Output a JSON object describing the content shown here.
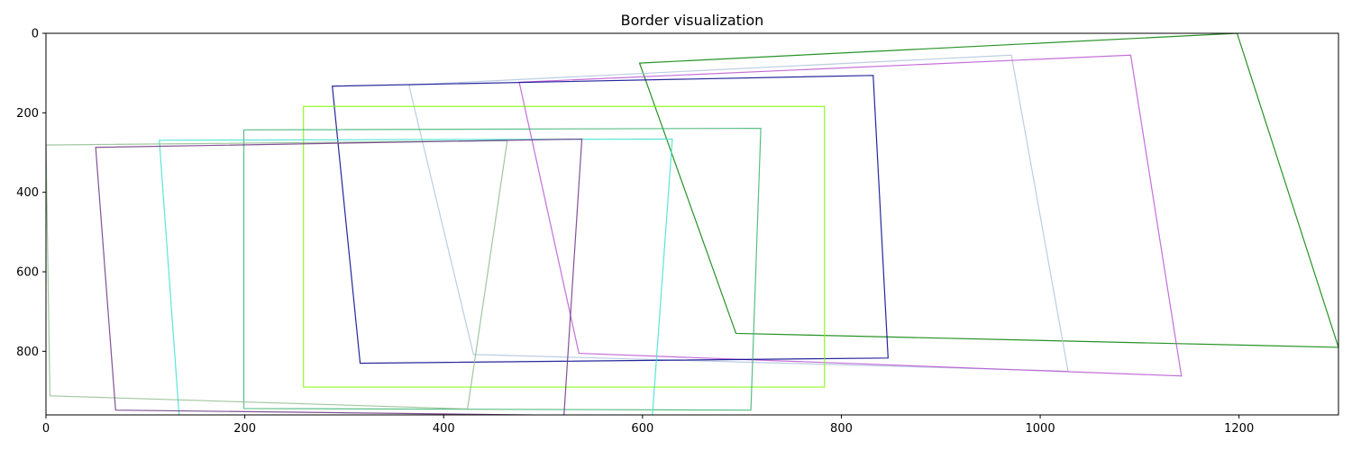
{
  "chart_data": {
    "type": "polygon-outlines",
    "title": "Border visualization",
    "xlabel": "",
    "ylabel": "",
    "xlim": [
      0,
      1300
    ],
    "ylim": [
      960,
      0
    ],
    "y_inverted": true,
    "grid": false,
    "x_ticks": [
      0,
      200,
      400,
      600,
      800,
      1000,
      1200
    ],
    "y_ticks": [
      0,
      200,
      400,
      600,
      800
    ],
    "series": [
      {
        "color": "#008000",
        "points": [
          [
            597,
            75
          ],
          [
            1198,
            0
          ],
          [
            1300,
            790
          ],
          [
            694,
            755
          ]
        ]
      },
      {
        "color": "#b0c4de",
        "points": [
          [
            365,
            130
          ],
          [
            971,
            55
          ],
          [
            1028,
            850
          ],
          [
            430,
            808
          ]
        ]
      },
      {
        "color": "#ba55d3",
        "points": [
          [
            476,
            123
          ],
          [
            1091,
            55
          ],
          [
            1142,
            862
          ],
          [
            536,
            805
          ]
        ]
      },
      {
        "color": "#00008b",
        "points": [
          [
            288,
            133
          ],
          [
            832,
            106
          ],
          [
            847,
            817
          ],
          [
            316,
            830
          ]
        ]
      },
      {
        "color": "#7cfc00",
        "points": [
          [
            259,
            184
          ],
          [
            783,
            184
          ],
          [
            783,
            890
          ],
          [
            259,
            890
          ]
        ]
      },
      {
        "color": "#3cb371",
        "points": [
          [
            199,
            243
          ],
          [
            719,
            239
          ],
          [
            709,
            948
          ],
          [
            199,
            944
          ]
        ]
      },
      {
        "color": "#40e0d0",
        "points": [
          [
            114,
            269
          ],
          [
            630,
            266
          ],
          [
            610,
            960
          ],
          [
            134,
            963
          ]
        ]
      },
      {
        "color": "#8fbc8f",
        "points": [
          [
            0,
            281
          ],
          [
            464,
            270
          ],
          [
            424,
            945
          ],
          [
            4,
            912
          ]
        ]
      },
      {
        "color": "#6c3483",
        "points": [
          [
            50,
            287
          ],
          [
            539,
            266
          ],
          [
            521,
            961
          ],
          [
            70,
            948
          ]
        ]
      }
    ]
  }
}
